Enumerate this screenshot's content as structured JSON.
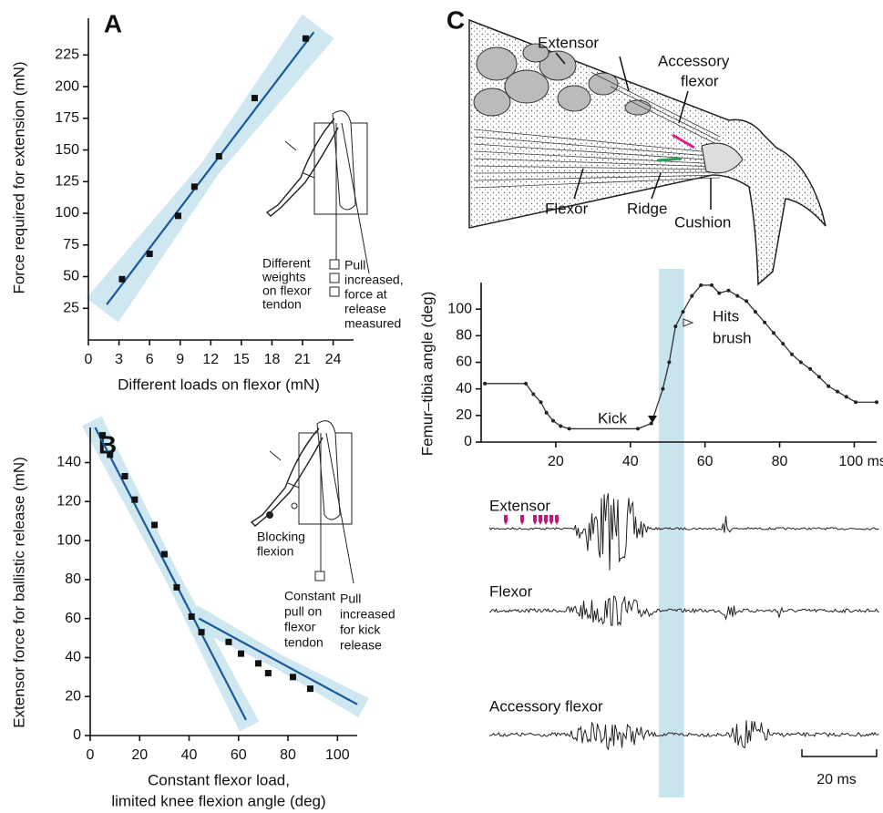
{
  "chart_data": [
    {
      "type": "scatter",
      "panel": "A",
      "ylabel": "Force required for extension (mN)",
      "xlabel": "Different loads on flexor (mN)",
      "x": [
        3.3,
        6,
        8.8,
        10.4,
        12.8,
        16.3,
        21.3
      ],
      "values": [
        48,
        68,
        98,
        121,
        145,
        191,
        238
      ],
      "color": "#111111",
      "fit_color": "#1a5a9a",
      "band_color": "#c5e3ef",
      "fit_lines": [
        {
          "x": [
            1.8,
            22.1
          ],
          "values": [
            28,
            243
          ]
        }
      ],
      "xlim": [
        0,
        26
      ],
      "ylim": [
        0,
        254
      ],
      "xticks": [
        0,
        3,
        6,
        9,
        12,
        15,
        18,
        21,
        24
      ],
      "yticks": [
        25,
        50,
        75,
        100,
        125,
        150,
        175,
        200,
        225
      ],
      "annotations": [
        {
          "lines": [
            "Different",
            "weights",
            "on flexor",
            "tendon"
          ]
        },
        {
          "lines": [
            "Pull",
            "increased,",
            "force at",
            "release",
            "measured"
          ]
        }
      ]
    },
    {
      "type": "scatter",
      "panel": "B",
      "ylabel": "Extensor force for ballistic release (mN)",
      "xlabel": [
        "Constant flexor load,",
        "limited knee flexion angle (deg)"
      ],
      "x": [
        5,
        8,
        14,
        18,
        26,
        30,
        35,
        41,
        45,
        56,
        61,
        68,
        72,
        82,
        89
      ],
      "values": [
        154,
        144,
        133,
        121,
        108,
        93,
        76,
        61,
        53,
        48,
        42,
        37,
        32,
        30,
        24
      ],
      "color": "#111111",
      "fit_color": "#1a5a9a",
      "band_color": "#c5e3ef",
      "fit_lines": [
        {
          "x": [
            2,
            63
          ],
          "values": [
            158,
            8
          ]
        },
        {
          "x": [
            44,
            108
          ],
          "values": [
            60,
            16
          ]
        }
      ],
      "xlim": [
        0,
        108
      ],
      "ylim": [
        0,
        158
      ],
      "xticks": [
        0,
        20,
        40,
        60,
        80,
        100
      ],
      "yticks": [
        0,
        20,
        40,
        60,
        80,
        100,
        120,
        140
      ],
      "annotations": [
        {
          "lines": [
            "Blocking",
            "flexion"
          ]
        },
        {
          "lines": [
            "Constant",
            "pull on",
            "flexor",
            "tendon"
          ]
        },
        {
          "lines": [
            "Pull",
            "increased",
            "for kick",
            "release"
          ]
        }
      ]
    },
    {
      "type": "line",
      "panel": "C",
      "ylabel": "Femur–tibia angle (deg)",
      "x": [
        1,
        12,
        14,
        16,
        17.5,
        19.3,
        21.3,
        23.6,
        42,
        45.6,
        48.7,
        50.4,
        52.1,
        54.1,
        56.5,
        58.9,
        61.8,
        63.8,
        66.3,
        68.7,
        71.1,
        73.5,
        76,
        78.4,
        80.9,
        83.3,
        85.7,
        88.2,
        90.6,
        93.1,
        95.5,
        97.9,
        100.4,
        106
      ],
      "values": [
        44,
        44,
        36,
        30,
        22,
        16,
        12,
        10,
        10,
        14,
        40,
        60,
        87,
        98,
        110,
        118,
        118,
        112,
        114,
        110,
        106,
        98,
        90,
        82,
        74,
        66,
        60,
        55,
        49,
        42,
        38,
        34,
        30,
        30
      ],
      "color": "#333333",
      "highlight": [
        47.6,
        54.4
      ],
      "highlight_color": "#c8e4ee",
      "xlim": [
        0,
        106
      ],
      "ylim": [
        0,
        120
      ],
      "xticks": [
        20,
        40,
        60,
        80,
        {
          "value": 100,
          "label": "100 ms"
        }
      ],
      "yticks": [
        0,
        20,
        40,
        60,
        80,
        100
      ],
      "annotations": [
        {
          "lines": [
            "Kick"
          ]
        },
        {
          "lines": [
            "Hits",
            "brush"
          ]
        }
      ]
    }
  ],
  "diagram": {
    "extensor": "Extensor",
    "accessory_flexor": [
      "Accessory",
      "flexor"
    ],
    "flexor": "Flexor",
    "ridge": "Ridge",
    "cushion": "Cushion"
  },
  "emg": {
    "traces": [
      "Extensor",
      "Flexor",
      "Accessory flexor"
    ],
    "scale_bar": "20 ms"
  }
}
